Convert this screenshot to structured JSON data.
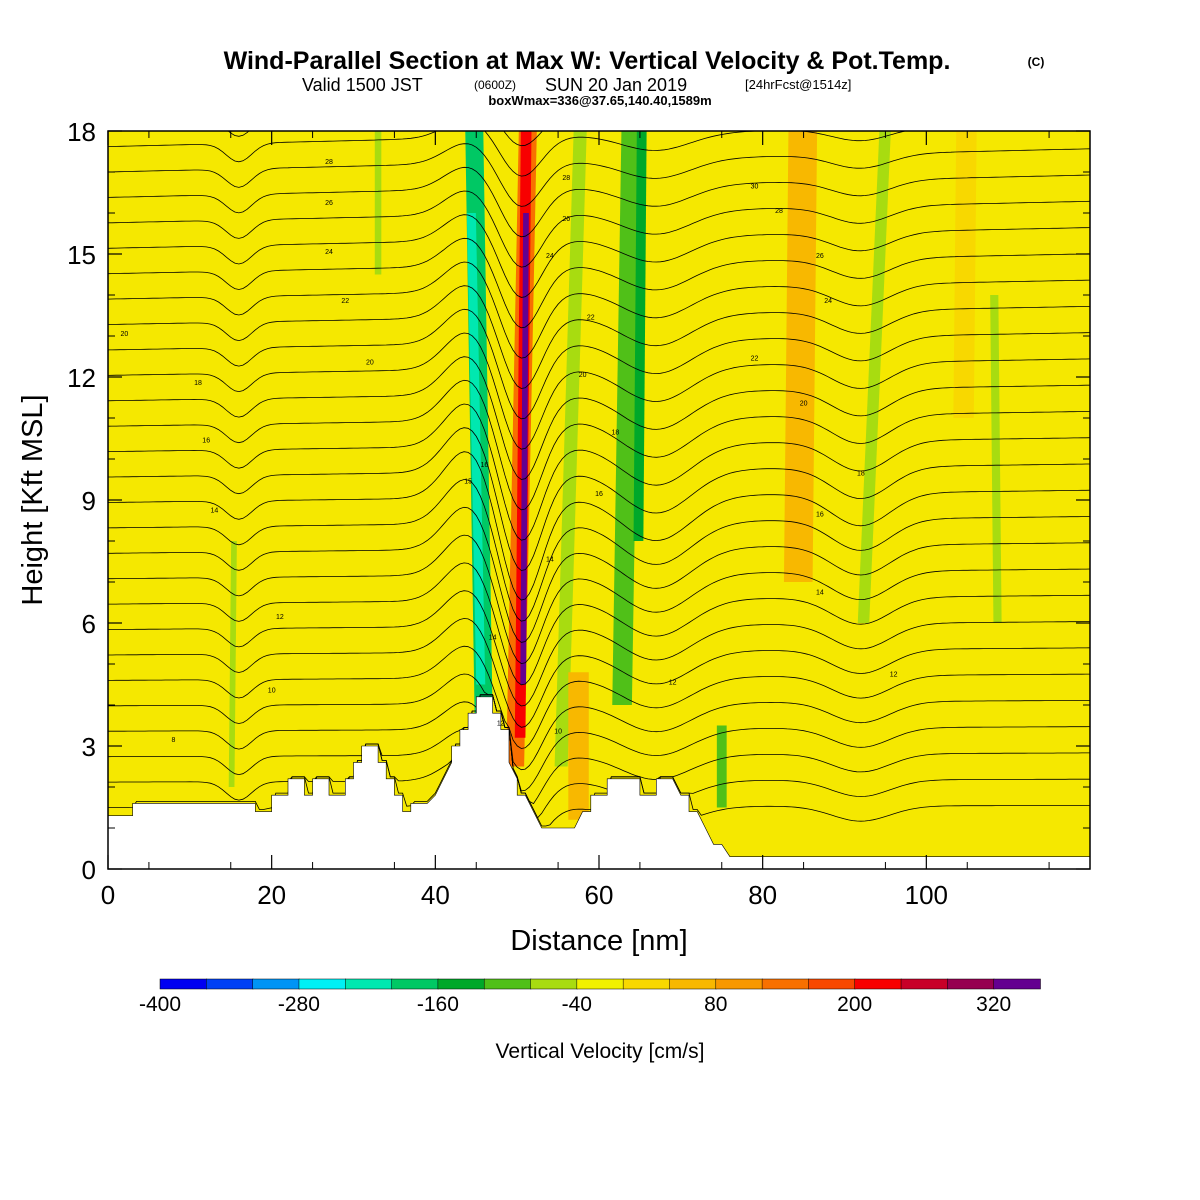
{
  "header": {
    "title": "Wind-Parallel Section at Max W: Vertical Velocity & Pot.Temp.",
    "title_mark": "(C)",
    "subtitle_a": "Valid 1500 JST",
    "subtitle_b": "(0600Z)",
    "subtitle_c": "SUN 20 Jan 2019",
    "subtitle_d": "[24hrFcst@1514z]",
    "subtitle2": "boxWmax=336@37.65,140.40,1589m"
  },
  "chart_data": {
    "type": "heatmap",
    "xlabel": "Distance [nm]",
    "ylabel": "Height [Kft MSL]",
    "xlim": [
      0,
      120
    ],
    "ylim": [
      0,
      18
    ],
    "xticks": [
      "0",
      "20",
      "40",
      "60",
      "80",
      "100"
    ],
    "yticks": [
      "0",
      "3",
      "6",
      "9",
      "12",
      "15",
      "18"
    ],
    "colorbar": {
      "label": "Vertical Velocity [cm/s]",
      "tick_labels": [
        "-400",
        "-280",
        "-160",
        "-40",
        "80",
        "200",
        "320"
      ],
      "tick_values": [
        -400,
        -280,
        -160,
        -40,
        80,
        200,
        320
      ],
      "range": [
        -400,
        360
      ],
      "colors": [
        "#0000f2",
        "#0040f5",
        "#0094f5",
        "#00f0f5",
        "#00e8b0",
        "#00c864",
        "#00a82a",
        "#50c018",
        "#a8dc10",
        "#f2f200",
        "#f8d800",
        "#f8b800",
        "#f89800",
        "#f87000",
        "#f84800",
        "#f80000",
        "#c80028",
        "#960050",
        "#640090"
      ]
    },
    "terrain_kft": [
      [
        0,
        1.3
      ],
      [
        3,
        1.3
      ],
      [
        3,
        1.6
      ],
      [
        7,
        1.6
      ],
      [
        9,
        1.6
      ],
      [
        9,
        1.6
      ],
      [
        12,
        1.6
      ],
      [
        12,
        1.6
      ],
      [
        18,
        1.6
      ],
      [
        18,
        1.4
      ],
      [
        20,
        1.4
      ],
      [
        20,
        1.8
      ],
      [
        22,
        1.8
      ],
      [
        22,
        2.2
      ],
      [
        24,
        2.2
      ],
      [
        24,
        1.8
      ],
      [
        25,
        1.8
      ],
      [
        25,
        2.2
      ],
      [
        27,
        2.2
      ],
      [
        27,
        1.8
      ],
      [
        29,
        1.8
      ],
      [
        29,
        2.2
      ],
      [
        30,
        2.2
      ],
      [
        30,
        2.6
      ],
      [
        31,
        2.6
      ],
      [
        31,
        3.0
      ],
      [
        33,
        3.0
      ],
      [
        33,
        2.6
      ],
      [
        34,
        2.6
      ],
      [
        34,
        2.2
      ],
      [
        35,
        2.2
      ],
      [
        35,
        1.8
      ],
      [
        36,
        1.8
      ],
      [
        36,
        1.4
      ],
      [
        37,
        1.4
      ],
      [
        37,
        1.6
      ],
      [
        39,
        1.6
      ],
      [
        40,
        1.8
      ],
      [
        41,
        2.2
      ],
      [
        42,
        2.6
      ],
      [
        42,
        3.0
      ],
      [
        43,
        3.0
      ],
      [
        43,
        3.4
      ],
      [
        44,
        3.4
      ],
      [
        44,
        3.8
      ],
      [
        44,
        3.8
      ],
      [
        45,
        3.8
      ],
      [
        45,
        4.2
      ],
      [
        47,
        4.2
      ],
      [
        47,
        3.8
      ],
      [
        48,
        3.8
      ],
      [
        48,
        3.4
      ],
      [
        49,
        3.4
      ],
      [
        49,
        2.6
      ],
      [
        50,
        2.2
      ],
      [
        50,
        1.8
      ],
      [
        51,
        1.8
      ],
      [
        52,
        1.4
      ],
      [
        53,
        1.0
      ],
      [
        55,
        1.0
      ],
      [
        57,
        1.0
      ],
      [
        58,
        1.4
      ],
      [
        59,
        1.4
      ],
      [
        59,
        1.8
      ],
      [
        61,
        1.8
      ],
      [
        61,
        2.2
      ],
      [
        65,
        2.2
      ],
      [
        65,
        1.8
      ],
      [
        67,
        1.8
      ],
      [
        67,
        2.2
      ],
      [
        69,
        2.2
      ],
      [
        70,
        1.8
      ],
      [
        71,
        1.8
      ],
      [
        71,
        1.4
      ],
      [
        72,
        1.4
      ],
      [
        73,
        1.0
      ],
      [
        74,
        0.6
      ],
      [
        75,
        0.6
      ],
      [
        76,
        0.3
      ],
      [
        80,
        0.3
      ],
      [
        85,
        0.3
      ],
      [
        95,
        0.3
      ],
      [
        100,
        0.3
      ],
      [
        120,
        0.3
      ]
    ],
    "theta_contour_labels": [
      {
        "x": 27,
        "y": 17.2,
        "text": "28"
      },
      {
        "x": 27,
        "y": 16.2,
        "text": "26"
      },
      {
        "x": 27,
        "y": 15.0,
        "text": "24"
      },
      {
        "x": 29,
        "y": 13.8,
        "text": "22"
      },
      {
        "x": 32,
        "y": 12.3,
        "text": "20"
      },
      {
        "x": 2,
        "y": 13.0,
        "text": "20"
      },
      {
        "x": 11,
        "y": 11.8,
        "text": "18"
      },
      {
        "x": 12,
        "y": 10.4,
        "text": "16"
      },
      {
        "x": 13,
        "y": 8.7,
        "text": "14"
      },
      {
        "x": 21,
        "y": 6.1,
        "text": "12"
      },
      {
        "x": 20,
        "y": 4.3,
        "text": "10"
      },
      {
        "x": 8,
        "y": 3.1,
        "text": "8"
      },
      {
        "x": 44,
        "y": 9.4,
        "text": "15"
      },
      {
        "x": 46,
        "y": 9.8,
        "text": "16"
      },
      {
        "x": 47,
        "y": 5.6,
        "text": "14"
      },
      {
        "x": 48,
        "y": 3.5,
        "text": "12"
      },
      {
        "x": 56,
        "y": 16.8,
        "text": "28"
      },
      {
        "x": 56,
        "y": 15.8,
        "text": "26"
      },
      {
        "x": 54,
        "y": 14.9,
        "text": "24"
      },
      {
        "x": 59,
        "y": 13.4,
        "text": "22"
      },
      {
        "x": 58,
        "y": 12.0,
        "text": "20"
      },
      {
        "x": 62,
        "y": 10.6,
        "text": "18"
      },
      {
        "x": 60,
        "y": 9.1,
        "text": "16"
      },
      {
        "x": 54,
        "y": 7.5,
        "text": "14"
      },
      {
        "x": 55,
        "y": 3.3,
        "text": "10"
      },
      {
        "x": 69,
        "y": 4.5,
        "text": "12"
      },
      {
        "x": 79,
        "y": 16.6,
        "text": "30"
      },
      {
        "x": 82,
        "y": 16.0,
        "text": "28"
      },
      {
        "x": 87,
        "y": 14.9,
        "text": "26"
      },
      {
        "x": 88,
        "y": 13.8,
        "text": "24"
      },
      {
        "x": 79,
        "y": 12.4,
        "text": "22"
      },
      {
        "x": 85,
        "y": 11.3,
        "text": "20"
      },
      {
        "x": 92,
        "y": 9.6,
        "text": "18"
      },
      {
        "x": 87,
        "y": 8.6,
        "text": "16"
      },
      {
        "x": 87,
        "y": 6.7,
        "text": "14"
      },
      {
        "x": 96,
        "y": 4.7,
        "text": "12"
      }
    ]
  }
}
